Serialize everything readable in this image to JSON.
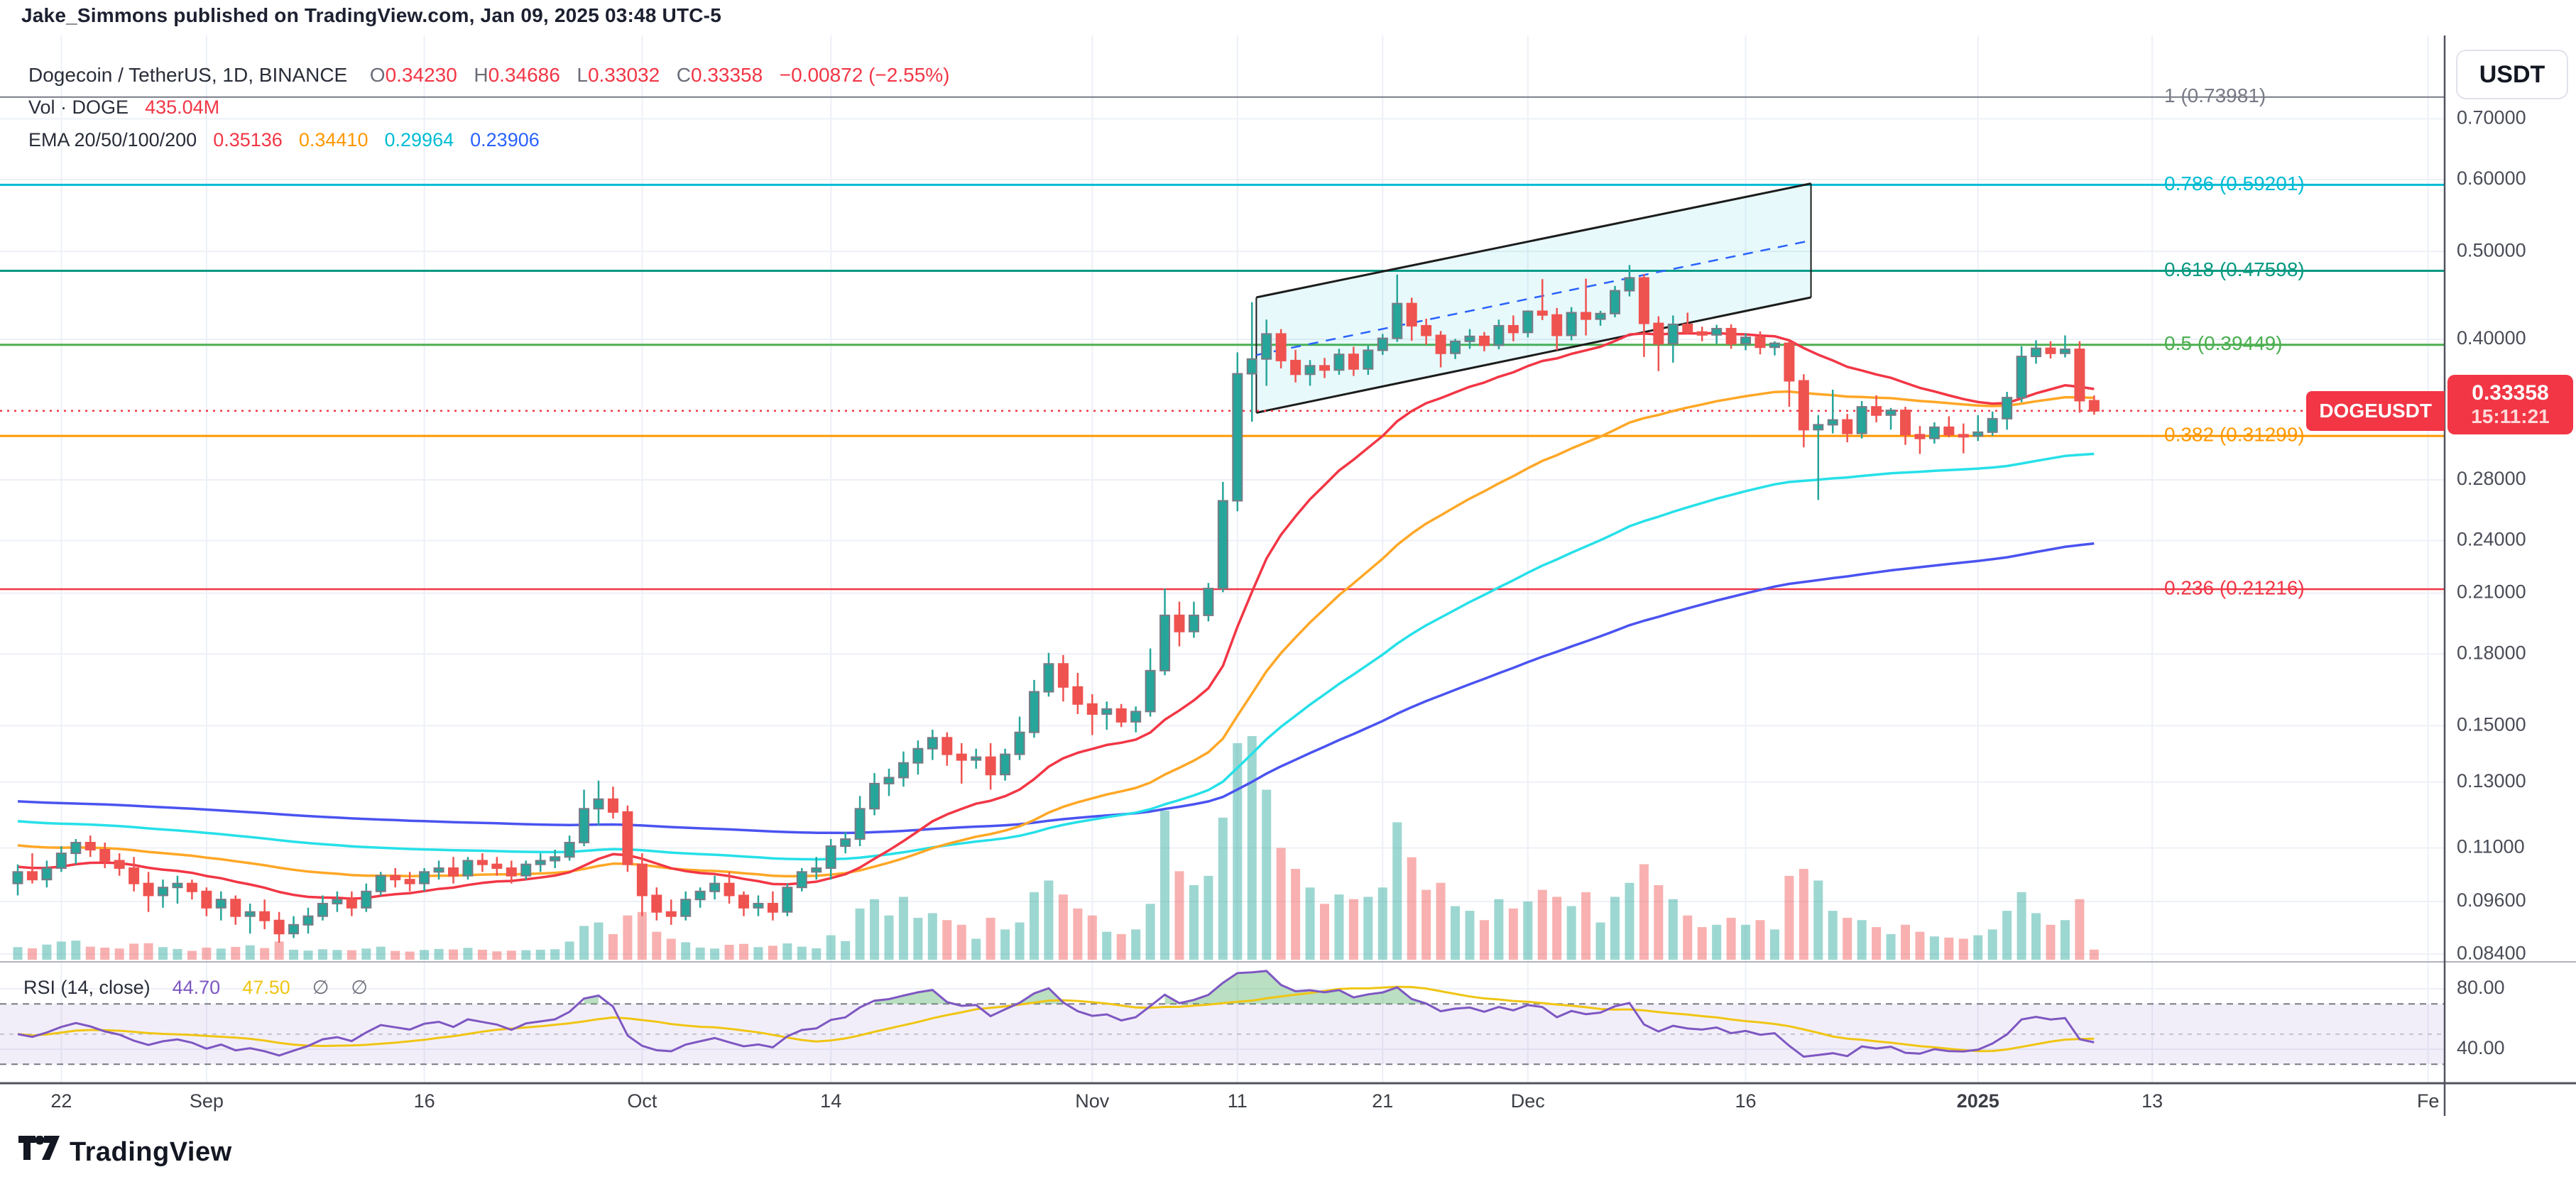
{
  "header": {
    "text": "Jake_Simmons published on TradingView.com, Jan 09, 2025 03:48 UTC-5"
  },
  "colors": {
    "up": "#26a69a",
    "down": "#ef5350",
    "up_border": "#787b86",
    "vol_up": "rgba(38,166,154,0.45)",
    "vol_down": "rgba(239,83,80,0.45)",
    "ema20": "#f23645",
    "ema50": "#ffa726",
    "ema100": "#26e0e8",
    "ema200": "#4a53f0",
    "grid": "#edf0f7",
    "axis_text": "#4a4d57",
    "dark_line": "#50535e",
    "rsi_line": "#7e57c2",
    "rsi_ma": "#f0c514",
    "rsi_band": "rgba(126,87,194,0.10)",
    "rsi_fill_hi": "rgba(103,183,119,0.45)",
    "channel_fill": "rgba(0,188,212,0.09)",
    "channel_line": "#1c1c1c",
    "channel_mid": "#2962ff",
    "badge": "#f23645"
  },
  "legend": {
    "symbol": "Dogecoin / TetherUS, 1D, BINANCE",
    "ohlc": [
      {
        "l": "O",
        "v": "0.34230"
      },
      {
        "l": "H",
        "v": "0.34686"
      },
      {
        "l": "L",
        "v": "0.33032"
      },
      {
        "l": "C",
        "v": "0.33358"
      }
    ],
    "change": "−0.00872 (−2.55%)",
    "ohlc_color": "#f23645",
    "vol_label": "Vol · DOGE",
    "vol_value": "435.04M",
    "ema_label": "EMA 20/50/100/200",
    "ema_values": [
      {
        "v": "0.35136",
        "color": "#f23645"
      },
      {
        "v": "0.34410",
        "color": "#ff9800"
      },
      {
        "v": "0.29964",
        "color": "#00bcd4"
      },
      {
        "v": "0.23906",
        "color": "#2962ff"
      }
    ]
  },
  "rsi_legend": {
    "name": "RSI",
    "params": "(14, close)",
    "value": "44.70",
    "ma": "47.50",
    "empty1": "∅",
    "empty2": "∅",
    "value_color": "#7e57c2",
    "ma_color": "#f0c514"
  },
  "axis": {
    "currency": "USDT"
  },
  "badge": {
    "symbol": "DOGEUSDT",
    "price": "0.33358",
    "countdown": "15:11:21"
  },
  "footer": {
    "brand": "TradingView"
  },
  "chart_data": {
    "type": "candlestick",
    "title": "Dogecoin / TetherUS, 1D, BINANCE",
    "price_axis": [
      {
        "text": "0.70000",
        "value": 0.7
      },
      {
        "text": "0.60000",
        "value": 0.6
      },
      {
        "text": "0.50000",
        "value": 0.5
      },
      {
        "text": "0.40000",
        "value": 0.4
      },
      {
        "text": "0.28000",
        "value": 0.28
      },
      {
        "text": "0.24000",
        "value": 0.24
      },
      {
        "text": "0.21000",
        "value": 0.21
      },
      {
        "text": "0.18000",
        "value": 0.18
      },
      {
        "text": "0.15000",
        "value": 0.15
      },
      {
        "text": "0.13000",
        "value": 0.13
      },
      {
        "text": "0.11000",
        "value": 0.11
      },
      {
        "text": "0.09600",
        "value": 0.096
      },
      {
        "text": "0.08400",
        "value": 0.084
      }
    ],
    "rsi_axis": [
      {
        "text": "80.00",
        "value": 80
      },
      {
        "text": "40.00",
        "value": 40
      }
    ],
    "time_axis": [
      {
        "label": "22",
        "d": 3,
        "bold": false
      },
      {
        "label": "Sep",
        "d": 13,
        "bold": false
      },
      {
        "label": "16",
        "d": 28,
        "bold": false
      },
      {
        "label": "Oct",
        "d": 43,
        "bold": false
      },
      {
        "label": "14",
        "d": 56,
        "bold": false
      },
      {
        "label": "Nov",
        "d": 74,
        "bold": false
      },
      {
        "label": "11",
        "d": 84,
        "bold": false
      },
      {
        "label": "21",
        "d": 94,
        "bold": false
      },
      {
        "label": "Dec",
        "d": 104,
        "bold": false
      },
      {
        "label": "16",
        "d": 119,
        "bold": false
      },
      {
        "label": "2025",
        "d": 135,
        "bold": true
      },
      {
        "label": "13",
        "d": 147,
        "bold": false
      },
      {
        "label": "Fe",
        "d": 166,
        "bold": false
      }
    ],
    "fib_levels": [
      {
        "label": "1 (0.73981)",
        "price": 0.73981,
        "color": "#787b86",
        "w": 2
      },
      {
        "label": "0.786 (0.59201)",
        "price": 0.59201,
        "color": "#00bcd4",
        "w": 3
      },
      {
        "label": "0.618 (0.47598)",
        "price": 0.47598,
        "color": "#089981",
        "w": 3
      },
      {
        "label": "0.5 (0.39449)",
        "price": 0.39449,
        "color": "#4caf50",
        "w": 3
      },
      {
        "label": "0.382 (0.31299)",
        "price": 0.31299,
        "color": "#ff9800",
        "w": 3
      },
      {
        "label": "0.236 (0.21216)",
        "price": 0.21216,
        "color": "#f23645",
        "w": 2.5
      }
    ],
    "current_price": {
      "value": 0.33358,
      "line_color": "#f23645"
    },
    "channel": {
      "d1": 85.3,
      "d2": 123.5,
      "upper_p1": 0.4449,
      "upper_p2": 0.594,
      "lower_p1": 0.332,
      "lower_p2": 0.4449
    },
    "rsi": {
      "period": 14,
      "band": [
        30,
        70
      ],
      "mid": 50,
      "grid": [
        80,
        40
      ]
    },
    "ema_periods": [
      20,
      50,
      100,
      200
    ],
    "ema_seeds": [
      0.105,
      0.111,
      0.118,
      0.124
    ],
    "candles": [
      [
        0.1005,
        0.1055,
        0.0975,
        0.1035,
        540
      ],
      [
        0.1035,
        0.1085,
        0.1005,
        0.1015,
        490
      ],
      [
        0.1015,
        0.1065,
        0.0995,
        0.1045,
        650
      ],
      [
        0.1045,
        0.1105,
        0.1035,
        0.1085,
        780
      ],
      [
        0.1085,
        0.1125,
        0.1055,
        0.1115,
        820
      ],
      [
        0.1115,
        0.1135,
        0.1075,
        0.1095,
        560
      ],
      [
        0.1095,
        0.1115,
        0.1045,
        0.1065,
        520
      ],
      [
        0.1065,
        0.1085,
        0.1025,
        0.1045,
        480
      ],
      [
        0.1045,
        0.1075,
        0.0985,
        0.1005,
        690
      ],
      [
        0.1005,
        0.1035,
        0.0935,
        0.0975,
        710
      ],
      [
        0.0975,
        0.1015,
        0.0945,
        0.0995,
        540
      ],
      [
        0.0995,
        0.1025,
        0.0955,
        0.1005,
        460
      ],
      [
        0.1005,
        0.1015,
        0.0965,
        0.0985,
        380
      ],
      [
        0.0985,
        0.0995,
        0.0925,
        0.0945,
        520
      ],
      [
        0.0945,
        0.0985,
        0.0915,
        0.0965,
        480
      ],
      [
        0.0965,
        0.0975,
        0.0905,
        0.0925,
        550
      ],
      [
        0.0925,
        0.0955,
        0.0885,
        0.0935,
        620
      ],
      [
        0.0935,
        0.0965,
        0.0895,
        0.0915,
        500
      ],
      [
        0.0915,
        0.0935,
        0.0865,
        0.0885,
        780
      ],
      [
        0.0885,
        0.0925,
        0.0875,
        0.0905,
        430
      ],
      [
        0.0905,
        0.0945,
        0.0885,
        0.0925,
        390
      ],
      [
        0.0925,
        0.0975,
        0.0915,
        0.0955,
        450
      ],
      [
        0.0955,
        0.0985,
        0.0935,
        0.0965,
        420
      ],
      [
        0.0965,
        0.0985,
        0.0925,
        0.0945,
        410
      ],
      [
        0.0945,
        0.1005,
        0.0935,
        0.0985,
        480
      ],
      [
        0.0985,
        0.1035,
        0.0975,
        0.1025,
        560
      ],
      [
        0.1025,
        0.1045,
        0.0995,
        0.1015,
        380
      ],
      [
        0.1015,
        0.1035,
        0.0985,
        0.1005,
        350
      ],
      [
        0.1005,
        0.1045,
        0.0985,
        0.1035,
        420
      ],
      [
        0.1035,
        0.1065,
        0.1015,
        0.1045,
        460
      ],
      [
        0.1045,
        0.1075,
        0.1005,
        0.1025,
        440
      ],
      [
        0.1025,
        0.1075,
        0.1015,
        0.1065,
        510
      ],
      [
        0.1065,
        0.1085,
        0.1035,
        0.1055,
        430
      ],
      [
        0.1055,
        0.1075,
        0.1025,
        0.1045,
        360
      ],
      [
        0.1045,
        0.1065,
        0.1005,
        0.1025,
        390
      ],
      [
        0.1025,
        0.1065,
        0.1015,
        0.1055,
        410
      ],
      [
        0.1055,
        0.1085,
        0.1035,
        0.1065,
        430
      ],
      [
        0.1065,
        0.1095,
        0.1045,
        0.1075,
        450
      ],
      [
        0.1075,
        0.1135,
        0.1065,
        0.1115,
        780
      ],
      [
        0.1115,
        0.1275,
        0.1105,
        0.1215,
        1450
      ],
      [
        0.1215,
        0.1305,
        0.1165,
        0.1245,
        1600
      ],
      [
        0.1245,
        0.1285,
        0.1185,
        0.1205,
        1100
      ],
      [
        0.1205,
        0.1225,
        0.1035,
        0.1055,
        1900
      ],
      [
        0.1055,
        0.1085,
        0.0925,
        0.0975,
        2050
      ],
      [
        0.0975,
        0.0995,
        0.0915,
        0.0935,
        1200
      ],
      [
        0.0935,
        0.0965,
        0.0905,
        0.0925,
        900
      ],
      [
        0.0925,
        0.0985,
        0.0915,
        0.0965,
        750
      ],
      [
        0.0965,
        0.0995,
        0.0945,
        0.0985,
        520
      ],
      [
        0.0985,
        0.1025,
        0.0965,
        0.1005,
        480
      ],
      [
        0.1005,
        0.1035,
        0.0955,
        0.0975,
        640
      ],
      [
        0.0975,
        0.0985,
        0.0925,
        0.0945,
        680
      ],
      [
        0.0945,
        0.0975,
        0.0925,
        0.0955,
        540
      ],
      [
        0.0955,
        0.0985,
        0.0915,
        0.0935,
        600
      ],
      [
        0.0935,
        0.1005,
        0.0925,
        0.0995,
        700
      ],
      [
        0.0995,
        0.1045,
        0.0985,
        0.1035,
        560
      ],
      [
        0.1035,
        0.1075,
        0.1015,
        0.1045,
        490
      ],
      [
        0.1045,
        0.1125,
        0.1015,
        0.1105,
        1050
      ],
      [
        0.1105,
        0.1145,
        0.1085,
        0.1125,
        800
      ],
      [
        0.1125,
        0.1255,
        0.1105,
        0.1215,
        2200
      ],
      [
        0.1215,
        0.133,
        0.1195,
        0.1295,
        2600
      ],
      [
        0.1295,
        0.1345,
        0.1255,
        0.1315,
        1900
      ],
      [
        0.1315,
        0.1405,
        0.1285,
        0.1365,
        2700
      ],
      [
        0.1365,
        0.1445,
        0.1325,
        0.1415,
        1800
      ],
      [
        0.1415,
        0.1485,
        0.1375,
        0.1455,
        2000
      ],
      [
        0.1455,
        0.1475,
        0.1355,
        0.1395,
        1700
      ],
      [
        0.1395,
        0.1435,
        0.1295,
        0.1375,
        1500
      ],
      [
        0.1375,
        0.1415,
        0.1345,
        0.1385,
        900
      ],
      [
        0.1385,
        0.1435,
        0.1275,
        0.1325,
        1800
      ],
      [
        0.1325,
        0.1415,
        0.1305,
        0.1395,
        1300
      ],
      [
        0.1395,
        0.1535,
        0.1375,
        0.1475,
        1600
      ],
      [
        0.1475,
        0.1685,
        0.1455,
        0.1635,
        2900
      ],
      [
        0.1635,
        0.1805,
        0.1615,
        0.1755,
        3400
      ],
      [
        0.1755,
        0.1795,
        0.1595,
        0.1655,
        2800
      ],
      [
        0.1655,
        0.1715,
        0.1545,
        0.1585,
        2200
      ],
      [
        0.1585,
        0.1625,
        0.1465,
        0.1545,
        1900
      ],
      [
        0.1545,
        0.1595,
        0.1485,
        0.1565,
        1200
      ],
      [
        0.1565,
        0.1585,
        0.1495,
        0.1515,
        1100
      ],
      [
        0.1515,
        0.1575,
        0.1475,
        0.1555,
        1300
      ],
      [
        0.1555,
        0.1825,
        0.1535,
        0.1725,
        2400
      ],
      [
        0.1725,
        0.2125,
        0.1705,
        0.1985,
        6400
      ],
      [
        0.1985,
        0.2055,
        0.1835,
        0.1905,
        3800
      ],
      [
        0.1905,
        0.2055,
        0.1875,
        0.1985,
        3200
      ],
      [
        0.1985,
        0.2155,
        0.1955,
        0.2125,
        3600
      ],
      [
        0.2125,
        0.2785,
        0.2105,
        0.2655,
        6100
      ],
      [
        0.2655,
        0.387,
        0.2585,
        0.3665,
        9300
      ],
      [
        0.3665,
        0.4395,
        0.3245,
        0.3805,
        9600
      ],
      [
        0.3805,
        0.4205,
        0.3555,
        0.4055,
        7300
      ],
      [
        0.4055,
        0.4105,
        0.3715,
        0.379,
        4800
      ],
      [
        0.379,
        0.3895,
        0.3585,
        0.366,
        3900
      ],
      [
        0.366,
        0.3795,
        0.3555,
        0.374,
        3100
      ],
      [
        0.374,
        0.3815,
        0.3625,
        0.37,
        2400
      ],
      [
        0.37,
        0.3905,
        0.3655,
        0.385,
        2800
      ],
      [
        0.385,
        0.3925,
        0.3645,
        0.371,
        2600
      ],
      [
        0.371,
        0.3935,
        0.3655,
        0.389,
        2700
      ],
      [
        0.389,
        0.4055,
        0.3845,
        0.401,
        3100
      ],
      [
        0.401,
        0.4715,
        0.3975,
        0.438,
        5900
      ],
      [
        0.438,
        0.4445,
        0.3985,
        0.414,
        4400
      ],
      [
        0.414,
        0.4215,
        0.3945,
        0.404,
        3000
      ],
      [
        0.404,
        0.4085,
        0.3725,
        0.386,
        3300
      ],
      [
        0.386,
        0.4005,
        0.3805,
        0.398,
        2300
      ],
      [
        0.398,
        0.4105,
        0.3905,
        0.403,
        2100
      ],
      [
        0.403,
        0.4075,
        0.388,
        0.394,
        1700
      ],
      [
        0.394,
        0.4205,
        0.39,
        0.414,
        2600
      ],
      [
        0.414,
        0.425,
        0.398,
        0.407,
        2200
      ],
      [
        0.407,
        0.4305,
        0.402,
        0.4295,
        2500
      ],
      [
        0.4295,
        0.466,
        0.42,
        0.4255,
        3000
      ],
      [
        0.4255,
        0.433,
        0.389,
        0.404,
        2700
      ],
      [
        0.404,
        0.434,
        0.399,
        0.428,
        2300
      ],
      [
        0.428,
        0.4665,
        0.404,
        0.421,
        2900
      ],
      [
        0.421,
        0.43,
        0.414,
        0.427,
        1600
      ],
      [
        0.427,
        0.458,
        0.423,
        0.4525,
        2700
      ],
      [
        0.4525,
        0.483,
        0.446,
        0.4675,
        3300
      ],
      [
        0.4675,
        0.472,
        0.3825,
        0.4165,
        4100
      ],
      [
        0.4165,
        0.424,
        0.369,
        0.3955,
        3200
      ],
      [
        0.3955,
        0.425,
        0.377,
        0.4155,
        2600
      ],
      [
        0.4155,
        0.428,
        0.405,
        0.4075,
        1900
      ],
      [
        0.4075,
        0.413,
        0.398,
        0.4045,
        1400
      ],
      [
        0.4045,
        0.415,
        0.3955,
        0.411,
        1500
      ],
      [
        0.411,
        0.4155,
        0.3905,
        0.3955,
        1800
      ],
      [
        0.3955,
        0.406,
        0.389,
        0.402,
        1500
      ],
      [
        0.402,
        0.408,
        0.385,
        0.392,
        1700
      ],
      [
        0.392,
        0.398,
        0.384,
        0.396,
        1300
      ],
      [
        0.396,
        0.399,
        0.337,
        0.36,
        3600
      ],
      [
        0.36,
        0.366,
        0.304,
        0.318,
        3900
      ],
      [
        0.318,
        0.33,
        0.266,
        0.322,
        3400
      ],
      [
        0.322,
        0.352,
        0.315,
        0.326,
        2100
      ],
      [
        0.326,
        0.331,
        0.308,
        0.315,
        1800
      ],
      [
        0.315,
        0.342,
        0.311,
        0.337,
        1700
      ],
      [
        0.337,
        0.347,
        0.324,
        0.33,
        1400
      ],
      [
        0.33,
        0.336,
        0.318,
        0.334,
        1100
      ],
      [
        0.334,
        0.337,
        0.306,
        0.314,
        1500
      ],
      [
        0.314,
        0.321,
        0.299,
        0.311,
        1200
      ],
      [
        0.311,
        0.324,
        0.307,
        0.32,
        1000
      ],
      [
        0.32,
        0.329,
        0.312,
        0.314,
        950
      ],
      [
        0.314,
        0.323,
        0.2995,
        0.313,
        900
      ],
      [
        0.313,
        0.33,
        0.309,
        0.316,
        1050
      ],
      [
        0.316,
        0.333,
        0.313,
        0.327,
        1300
      ],
      [
        0.327,
        0.35,
        0.318,
        0.345,
        2100
      ],
      [
        0.345,
        0.393,
        0.341,
        0.383,
        2900
      ],
      [
        0.383,
        0.399,
        0.376,
        0.391,
        2000
      ],
      [
        0.391,
        0.398,
        0.381,
        0.386,
        1500
      ],
      [
        0.386,
        0.404,
        0.382,
        0.39,
        1700
      ],
      [
        0.39,
        0.398,
        0.332,
        0.3423,
        2600
      ],
      [
        0.3423,
        0.34686,
        0.33032,
        0.33358,
        435
      ]
    ]
  }
}
